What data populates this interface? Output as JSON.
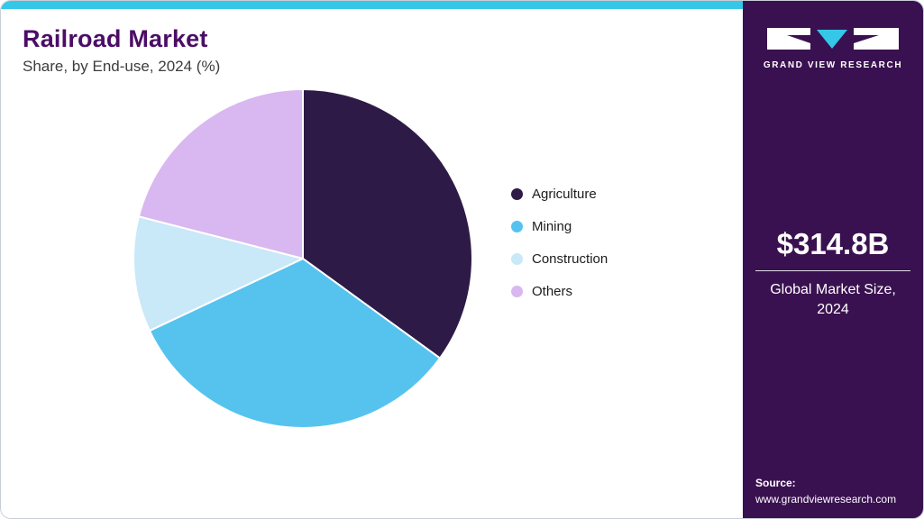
{
  "header": {
    "title": "Railroad Market",
    "subtitle": "Share, by End-use, 2024 (%)"
  },
  "chart_data": {
    "type": "pie",
    "title": "Railroad Market Share, by End-use, 2024 (%)",
    "unit": "percent",
    "start_angle_deg": 0,
    "direction": "clockwise",
    "legend_position": "right",
    "segments": [
      {
        "label": "Agriculture",
        "value": 35,
        "color": "#2e1a47"
      },
      {
        "label": "Mining",
        "value": 33,
        "color": "#56c3ee"
      },
      {
        "label": "Construction",
        "value": 11,
        "color": "#c9e8f8"
      },
      {
        "label": "Others",
        "value": 21,
        "color": "#d9b7f0"
      }
    ]
  },
  "sidebar": {
    "brand_name": "GRAND VIEW RESEARCH",
    "market_size": "$314.8B",
    "market_size_label": "Global Market Size, 2024",
    "source_label": "Source:",
    "source_url": "www.grandviewresearch.com",
    "background_color": "#3a1150",
    "accent_color": "#35c7e8"
  }
}
